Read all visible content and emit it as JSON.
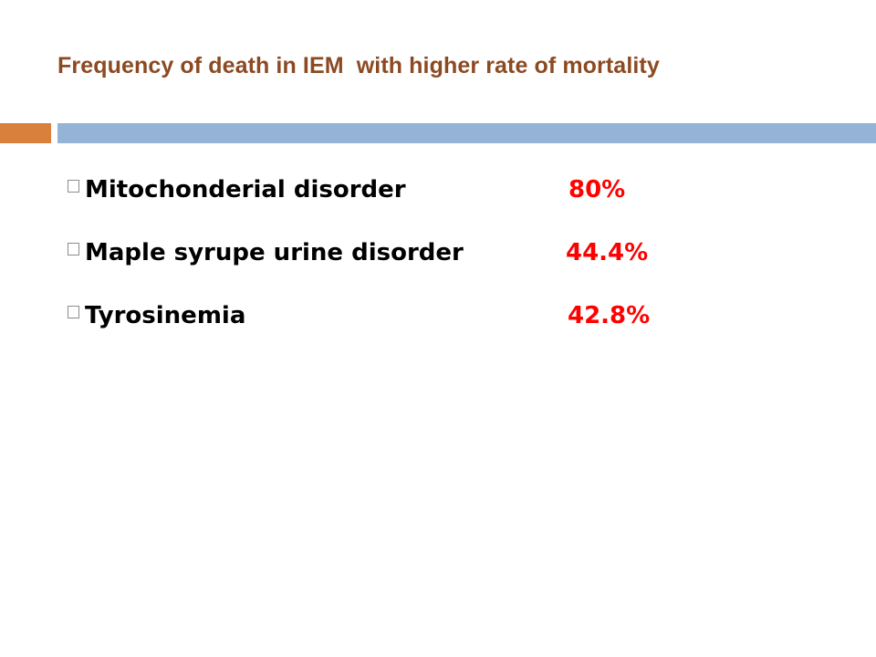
{
  "slide": {
    "title": "Frequency of death in IEM  with higher rate of mortality",
    "colors": {
      "title": "#8B4A22",
      "accent_orange": "#D9813C",
      "accent_blue": "#94B3D6",
      "value_red": "#FF0000"
    },
    "bullet_icon": "square-bullet-icon",
    "items": [
      {
        "label": "Mitochonderial disorder",
        "value": "80%"
      },
      {
        "label": "Maple syrupe urine disorder",
        "value": "44.4%"
      },
      {
        "label": "Tyrosinemia",
        "value": "42.8%"
      }
    ]
  }
}
